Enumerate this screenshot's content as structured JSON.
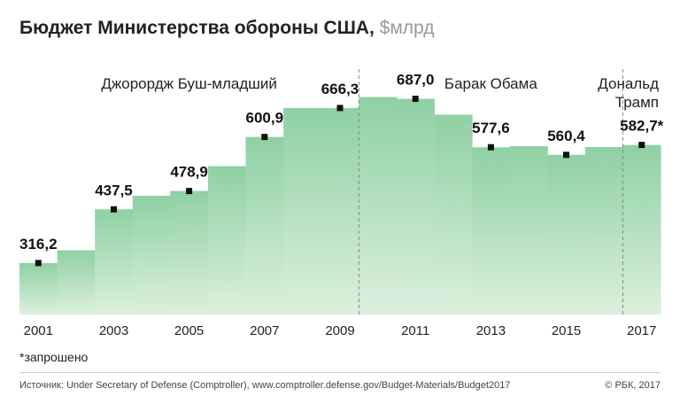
{
  "header": {
    "title": "Бюджет Министерства обороны США,",
    "unit": "$млрд"
  },
  "chart_data": {
    "type": "area",
    "x": [
      2001,
      2002,
      2003,
      2004,
      2005,
      2006,
      2007,
      2008,
      2009,
      2010,
      2011,
      2012,
      2013,
      2014,
      2015,
      2016,
      2017
    ],
    "values": [
      316.2,
      345,
      437.5,
      468,
      478.9,
      535,
      600.9,
      666.3,
      666.3,
      691,
      687.0,
      651,
      577.6,
      580,
      560.4,
      578,
      582.7
    ],
    "labeled_points": [
      {
        "year": 2001,
        "label": "316,2"
      },
      {
        "year": 2003,
        "label": "437,5"
      },
      {
        "year": 2005,
        "label": "478,9"
      },
      {
        "year": 2007,
        "label": "600,9"
      },
      {
        "year": 2009,
        "label": "666,3"
      },
      {
        "year": 2011,
        "label": "687,0"
      },
      {
        "year": 2013,
        "label": "577,6"
      },
      {
        "year": 2015,
        "label": "560,4"
      },
      {
        "year": 2017,
        "label": "582,7*"
      }
    ],
    "x_tick_labels": [
      "2001",
      "2003",
      "2005",
      "2007",
      "2009",
      "2011",
      "2013",
      "2015",
      "2017"
    ],
    "periods": [
      {
        "label": "Джорордж Буш-младший",
        "from": 2001,
        "to": 2009
      },
      {
        "label": "Барак Обама",
        "from": 2010,
        "to": 2016
      },
      {
        "label": "Дональд Трамп",
        "from": 2017,
        "to": 2017
      }
    ],
    "ylim": [
      200,
      720
    ],
    "colors": {
      "fill_top": "#8fd0a4",
      "fill_bottom": "#dcf0dd",
      "marker": "#111111",
      "divider": "#888888"
    }
  },
  "footnote": "*запрошено",
  "source": "Источник: Under Secretary of Defense (Comptroller), www.comptroller.defense.gov/Budget-Materials/Budget2017",
  "copyright": "© РБК, 2017"
}
